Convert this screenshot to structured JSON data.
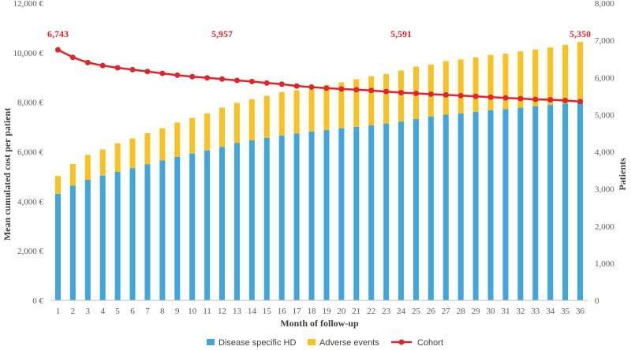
{
  "chart_data": {
    "type": "bar",
    "stacked": true,
    "categories": [
      "1",
      "2",
      "3",
      "4",
      "5",
      "6",
      "7",
      "8",
      "9",
      "10",
      "11",
      "12",
      "13",
      "14",
      "15",
      "16",
      "17",
      "18",
      "19",
      "20",
      "21",
      "22",
      "23",
      "24",
      "25",
      "26",
      "27",
      "28",
      "29",
      "30",
      "31",
      "32",
      "33",
      "34",
      "35",
      "36"
    ],
    "series": [
      {
        "name": "Disease specific HD",
        "axis": "left",
        "color": "#3FA7DC",
        "values": [
          4300,
          4630,
          4870,
          5040,
          5190,
          5340,
          5500,
          5650,
          5800,
          5930,
          6050,
          6200,
          6350,
          6460,
          6560,
          6650,
          6740,
          6820,
          6880,
          6950,
          7010,
          7070,
          7140,
          7220,
          7320,
          7420,
          7500,
          7550,
          7610,
          7680,
          7720,
          7780,
          7840,
          7890,
          7940,
          7980
        ]
      },
      {
        "name": "Adverse events",
        "axis": "left",
        "color": "#F9C21F",
        "values": [
          720,
          880,
          1000,
          1050,
          1150,
          1200,
          1250,
          1290,
          1380,
          1430,
          1500,
          1580,
          1620,
          1660,
          1700,
          1760,
          1740,
          1690,
          1820,
          1850,
          1920,
          1980,
          2000,
          2060,
          2120,
          2100,
          2160,
          2180,
          2200,
          2230,
          2240,
          2270,
          2290,
          2320,
          2380,
          2450
        ]
      },
      {
        "name": "Cohort",
        "type": "line",
        "axis": "right",
        "color": "#E0242A",
        "values": [
          6743,
          6540,
          6400,
          6320,
          6260,
          6210,
          6160,
          6110,
          6060,
          6020,
          5990,
          5957,
          5920,
          5890,
          5850,
          5820,
          5770,
          5740,
          5710,
          5690,
          5670,
          5650,
          5620,
          5591,
          5570,
          5550,
          5530,
          5510,
          5490,
          5470,
          5450,
          5430,
          5410,
          5400,
          5380,
          5350
        ]
      }
    ],
    "data_labels": [
      {
        "index": 0,
        "text": "6,743"
      },
      {
        "index": 11,
        "text": "5,957"
      },
      {
        "index": 23,
        "text": "5,591"
      },
      {
        "index": 35,
        "text": "5,350"
      }
    ],
    "xlabel": "Month of follow-up",
    "ylabel_left": "Mean cumulated cost per patient",
    "ylabel_right": "Patients",
    "ylim_left": [
      0,
      12000
    ],
    "ylim_right": [
      0,
      8000
    ],
    "left_ticks": [
      "0 €",
      "2,000 €",
      "4,000 €",
      "6,000 €",
      "8,000 €",
      "10,000 €",
      "12,000 €"
    ],
    "right_ticks": [
      "0",
      "1,000",
      "2,000",
      "3,000",
      "4,000",
      "5,000",
      "6,000",
      "7,000",
      "8,000"
    ],
    "grid": false,
    "legend_position": "bottom"
  }
}
